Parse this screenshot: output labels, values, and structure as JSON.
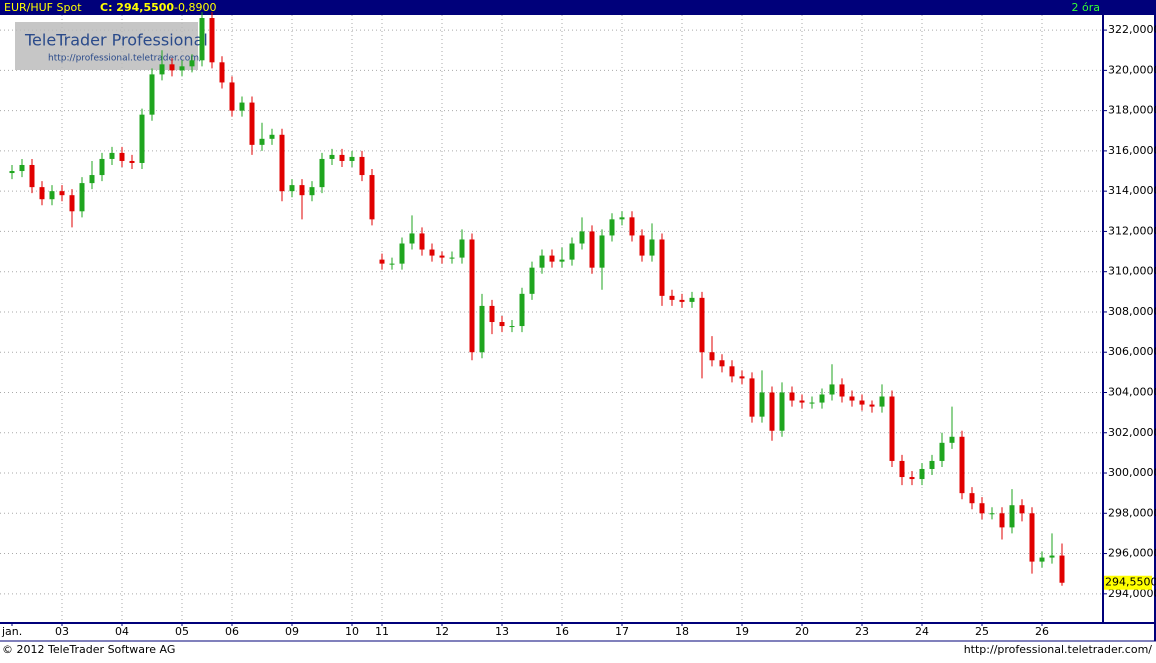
{
  "chart_data": {
    "type": "candlestick",
    "header": {
      "symbol": "EUR/HUF Spot",
      "close": "C: 294,5500",
      "change": "-0,8900",
      "interval": "2 óra"
    },
    "watermark": {
      "title": "TeleTrader Professional",
      "url": "http://professional.teletrader.com/"
    },
    "footer": {
      "copyright": "© 2012 TeleTrader Software AG",
      "url": "http://professional.teletrader.com/"
    },
    "up_color": "#1fa51f",
    "down_color": "#e00000",
    "grid": true,
    "categories": [
      "jan.",
      null,
      null,
      null,
      null,
      "03",
      null,
      null,
      null,
      null,
      null,
      "04",
      null,
      null,
      null,
      null,
      null,
      "05",
      null,
      null,
      null,
      null,
      "06",
      null,
      null,
      null,
      null,
      null,
      "09",
      null,
      null,
      null,
      null,
      null,
      "10",
      null,
      null,
      "11",
      null,
      null,
      null,
      null,
      null,
      "12",
      null,
      null,
      null,
      null,
      null,
      "13",
      null,
      null,
      null,
      null,
      null,
      "16",
      null,
      null,
      null,
      null,
      null,
      "17",
      null,
      null,
      null,
      null,
      null,
      "18",
      null,
      null,
      null,
      null,
      null,
      "19",
      null,
      null,
      null,
      null,
      null,
      "20",
      null,
      null,
      null,
      null,
      null,
      "23",
      null,
      null,
      null,
      null,
      null,
      "24",
      null,
      null,
      null,
      null,
      null,
      "25",
      null,
      null,
      null,
      null,
      null,
      "26",
      null,
      null
    ],
    "open": [
      314.9,
      315.0,
      315.3,
      314.2,
      313.6,
      314.0,
      313.8,
      313.0,
      314.4,
      314.8,
      315.6,
      315.9,
      315.5,
      315.4,
      317.8,
      319.8,
      320.3,
      320.0,
      320.2,
      320.5,
      322.6,
      320.4,
      319.4,
      318.0,
      318.4,
      316.3,
      316.6,
      316.8,
      314.0,
      314.3,
      313.8,
      314.2,
      315.6,
      315.8,
      315.5,
      315.7,
      314.8,
      310.6,
      310.4,
      310.4,
      311.4,
      311.9,
      311.1,
      310.8,
      310.7,
      310.7,
      311.6,
      306.0,
      308.3,
      307.5,
      307.3,
      307.3,
      308.9,
      310.2,
      310.8,
      310.5,
      310.6,
      311.4,
      312.0,
      310.2,
      311.8,
      312.6,
      312.7,
      311.8,
      310.8,
      311.6,
      308.8,
      308.6,
      308.5,
      308.7,
      306.0,
      305.6,
      305.3,
      304.8,
      304.7,
      302.8,
      304.0,
      302.1,
      304.0,
      303.6,
      303.5,
      303.5,
      303.9,
      304.4,
      303.8,
      303.6,
      303.4,
      303.3,
      303.8,
      300.6,
      299.8,
      299.7,
      300.2,
      300.6,
      301.5,
      301.8,
      299.0,
      298.5,
      298.0,
      298.0,
      297.3,
      298.4,
      298.0,
      295.6,
      295.8,
      295.9
    ],
    "high": [
      315.3,
      315.6,
      315.6,
      314.5,
      314.3,
      314.3,
      314.1,
      314.7,
      315.5,
      315.9,
      316.2,
      316.2,
      315.8,
      318.1,
      320.1,
      321.0,
      320.6,
      320.5,
      320.8,
      322.9,
      322.9,
      320.7,
      319.7,
      318.7,
      318.7,
      317.4,
      317.1,
      317.1,
      314.6,
      314.6,
      314.5,
      315.9,
      316.1,
      316.1,
      316.0,
      316.0,
      315.1,
      310.9,
      310.7,
      311.7,
      312.8,
      312.2,
      311.4,
      311.0,
      311.0,
      312.1,
      311.9,
      308.9,
      308.6,
      307.8,
      307.6,
      309.2,
      310.5,
      311.1,
      311.1,
      311.2,
      311.7,
      312.7,
      312.3,
      312.1,
      312.9,
      313.0,
      313.0,
      312.1,
      312.4,
      311.9,
      309.1,
      308.9,
      309.0,
      309.0,
      306.8,
      305.9,
      305.6,
      305.1,
      305.0,
      305.1,
      304.3,
      304.5,
      304.3,
      303.9,
      303.8,
      304.2,
      305.4,
      304.7,
      304.1,
      303.9,
      303.6,
      304.4,
      304.1,
      300.9,
      300.1,
      300.5,
      300.9,
      302.0,
      303.3,
      302.1,
      299.3,
      298.8,
      298.3,
      298.3,
      299.2,
      298.7,
      298.3,
      296.1,
      297.0,
      296.5
    ],
    "low": [
      314.6,
      314.7,
      313.9,
      313.3,
      313.3,
      313.5,
      312.2,
      312.7,
      314.1,
      314.5,
      315.3,
      315.2,
      315.1,
      315.1,
      317.5,
      319.5,
      319.7,
      319.7,
      319.9,
      320.2,
      320.1,
      319.1,
      317.7,
      317.7,
      315.8,
      316.0,
      316.3,
      313.5,
      313.7,
      312.6,
      313.5,
      313.9,
      315.3,
      315.2,
      315.2,
      314.5,
      312.3,
      310.1,
      310.1,
      310.1,
      311.1,
      310.8,
      310.5,
      310.4,
      310.4,
      310.4,
      305.6,
      305.7,
      306.9,
      307.0,
      307.0,
      307.0,
      308.6,
      309.9,
      310.2,
      310.2,
      310.3,
      311.1,
      309.9,
      309.1,
      311.5,
      312.3,
      311.5,
      310.5,
      310.5,
      308.3,
      308.3,
      308.2,
      308.2,
      304.7,
      305.3,
      305.0,
      304.5,
      304.4,
      302.5,
      302.5,
      301.6,
      301.8,
      303.3,
      303.2,
      303.2,
      303.2,
      303.6,
      303.5,
      303.3,
      303.1,
      303.0,
      303.0,
      300.3,
      299.4,
      299.4,
      299.4,
      299.9,
      300.3,
      301.2,
      298.7,
      298.2,
      297.7,
      297.7,
      296.7,
      297.0,
      297.6,
      295.0,
      295.3,
      295.5,
      294.4
    ],
    "close": [
      315.0,
      315.3,
      314.2,
      313.6,
      314.0,
      313.8,
      313.0,
      314.4,
      314.8,
      315.6,
      315.9,
      315.5,
      315.4,
      317.8,
      319.8,
      320.3,
      320.0,
      320.2,
      320.5,
      322.6,
      320.4,
      319.4,
      318.0,
      318.4,
      316.3,
      316.6,
      316.8,
      314.0,
      314.3,
      313.8,
      314.2,
      315.6,
      315.8,
      315.5,
      315.7,
      314.8,
      312.6,
      310.4,
      310.4,
      311.4,
      311.9,
      311.1,
      310.8,
      310.7,
      310.7,
      311.6,
      306.0,
      308.3,
      307.5,
      307.3,
      307.3,
      308.9,
      310.2,
      310.8,
      310.5,
      310.6,
      311.4,
      312.0,
      310.2,
      311.8,
      312.6,
      312.7,
      311.8,
      310.8,
      311.6,
      308.8,
      308.6,
      308.5,
      308.7,
      306.0,
      305.6,
      305.3,
      304.8,
      304.7,
      302.8,
      304.0,
      302.1,
      304.0,
      303.6,
      303.5,
      303.5,
      303.9,
      304.4,
      303.8,
      303.6,
      303.4,
      303.3,
      303.8,
      300.6,
      299.8,
      299.7,
      300.2,
      300.6,
      301.5,
      301.8,
      299.0,
      298.5,
      298.0,
      298.0,
      297.3,
      298.4,
      298.0,
      295.6,
      295.8,
      295.9,
      294.55
    ],
    "last_price": {
      "value": 294.55,
      "label": "294,5500"
    },
    "ylim": [
      292.6,
      322.75
    ],
    "yticks": [
      {
        "value": 294,
        "label": "294,0000"
      },
      {
        "value": 296,
        "label": "296,0000"
      },
      {
        "value": 298,
        "label": "298,0000"
      },
      {
        "value": 300,
        "label": "300,0000"
      },
      {
        "value": 302,
        "label": "302,0000"
      },
      {
        "value": 304,
        "label": "304,0000"
      },
      {
        "value": 306,
        "label": "306,0000"
      },
      {
        "value": 308,
        "label": "308,0000"
      },
      {
        "value": 310,
        "label": "310,0000"
      },
      {
        "value": 312,
        "label": "312,0000"
      },
      {
        "value": 314,
        "label": "314,0000"
      },
      {
        "value": 316,
        "label": "316,0000"
      },
      {
        "value": 318,
        "label": "318,0000"
      },
      {
        "value": 320,
        "label": "320,0000"
      },
      {
        "value": 322,
        "label": "322,0000"
      }
    ]
  }
}
